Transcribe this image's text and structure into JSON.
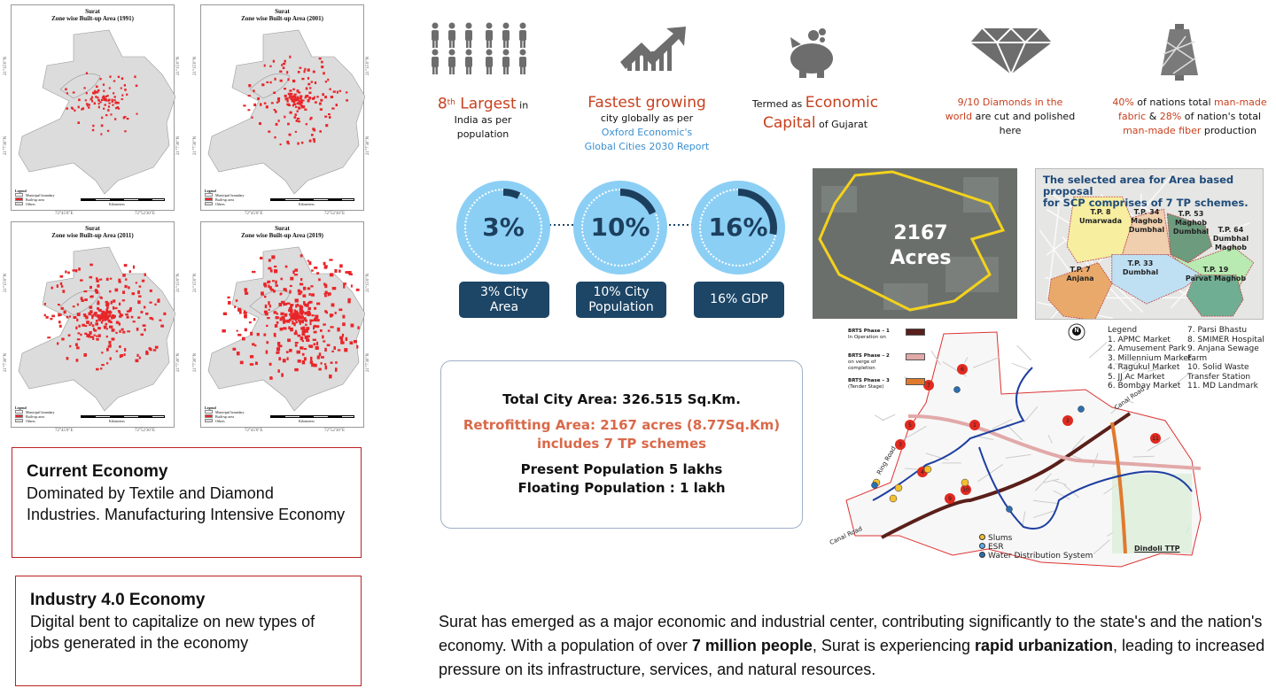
{
  "maps": [
    {
      "city": "Surat",
      "title": "Zone wise Built-up Area (1991)",
      "density": 0.25
    },
    {
      "city": "Surat",
      "title": "Zone wise Built-up Area (2001)",
      "density": 0.45
    },
    {
      "city": "Surat",
      "title": "Zone wise Built-up Area (2011)",
      "density": 0.65
    },
    {
      "city": "Surat",
      "title": "Zone wise Built-up Area (2019)",
      "density": 0.85
    }
  ],
  "map_legend": {
    "title": "Legend",
    "items": [
      "Municipal boundary",
      "Built-up area",
      "Others"
    ],
    "scale_unit": "Kilometers",
    "scale_ticks": [
      "4",
      "2",
      "0",
      "4",
      "8",
      "12"
    ],
    "coords_top": [
      "72°45'0\"E",
      "72°52'30\"E"
    ],
    "coords_side": [
      "21°15'0\"N",
      "21°7'30\"N"
    ],
    "builtup_color": "#e8262a"
  },
  "economy_boxes": [
    {
      "title": "Current Economy",
      "text": "Dominated by Textile and Diamond Industries. Manufacturing Intensive Economy"
    },
    {
      "title": "Industry 4.0 Economy",
      "text": "Digital bent to capitalize on new types of jobs generated in the economy"
    }
  ],
  "stats": [
    {
      "icon": "people-icon",
      "sup": "th",
      "hl1": "8",
      "hl2": " Largest",
      "t1": " in",
      "t2": "India as per",
      "t3": "population"
    },
    {
      "icon": "growth-chart-icon",
      "hl1": "Fastest growing",
      "t1": "city globally as per",
      "link1": "Oxford Economic's",
      "link2": "Global Cities 2030 Report"
    },
    {
      "icon": "piggy-bank-icon",
      "t1": "Termed as ",
      "hl1": "Economic",
      "hl2": "Capital",
      "t2": " of Gujarat"
    },
    {
      "icon": "diamond-icon",
      "hl1": "9/10 Diamonds in the",
      "hl2": "world",
      "t1": " are cut and polished",
      "t2": "here"
    },
    {
      "icon": "yarn-cone-icon",
      "hl1": "40%",
      "t1": " of nations total ",
      "hl2": "man-made",
      "hl3": "fabric",
      "t2": " & ",
      "hl4": "28%",
      "t3": " of nation's total",
      "hl5": "man-made fiber",
      "t4": " production"
    }
  ],
  "share_circles": [
    {
      "value": "3%",
      "fraction": 0.03,
      "label1": "3% City",
      "label2": "Area"
    },
    {
      "value": "10%",
      "fraction": 0.1,
      "label1": "10% City",
      "label2": "Population"
    },
    {
      "value": "16%",
      "fraction": 0.16,
      "label1": "16% GDP",
      "label2": ""
    }
  ],
  "info": {
    "total": "Total City Area: 326.515 Sq.Km.",
    "retro1": "Retrofitting Area: 2167 acres (8.77Sq.Km)",
    "retro2": "includes 7 TP schemes",
    "pop": "Present Population 5 lakhs",
    "floating": "Floating Population : 1 lakh"
  },
  "satellite": {
    "label1": "2167",
    "label2": "Acres"
  },
  "tp_map": {
    "title1": "The selected area for Area based proposal",
    "title2": "for SCP comprises of 7 TP schemes.",
    "zones": [
      {
        "l1": "T.P. 8",
        "l2": "Umarwada",
        "color": "#f7eea0"
      },
      {
        "l1": "T.P. 34",
        "l2": "Maghob",
        "l3": "Dumbhal",
        "color": "#f0cfae"
      },
      {
        "l1": "T.P. 53",
        "l2": "Maghob",
        "l3": "Dumbhal",
        "color": "#6d9b7e"
      },
      {
        "l1": "T.P. 64",
        "l2": "Dumbhal",
        "l3": "Maghob",
        "color": "#b8eab2"
      },
      {
        "l1": "T.P. 7",
        "l2": "Anjana",
        "color": "#e9a96a"
      },
      {
        "l1": "T.P. 33",
        "l2": "Dumbhal",
        "color": "#bfe0f3"
      },
      {
        "l1": "T.P. 19",
        "l2": "Parvat Maghob",
        "color": "#6fae92"
      }
    ]
  },
  "brts": {
    "phases": [
      {
        "l1": "BRTS Phase – 1",
        "l2": "In Operation on",
        "color": "#5a1f1a"
      },
      {
        "l1": "BRTS Phase – 2",
        "l2": "on verge of completion",
        "color": "#e2a9a9"
      },
      {
        "l1": "BRTS Phase – 3",
        "l2": "(Tender Stage)",
        "color": "#e07a2e"
      }
    ],
    "legend_title": "Legend",
    "legend": [
      "1.  APMC Market",
      "2.  Amusement Park",
      "3.  Millennium Market",
      "4.  Ragukul Market",
      "5.  JJ Ac Market",
      "6.  Bombay Market",
      "7.   Parsi Bhastu",
      "8.   SMIMER Hospital",
      "9.   Anjana Sewage Farm",
      "10. Solid  Waste Transfer  Station",
      "11. MD Landmark"
    ],
    "points": [
      {
        "label": "Slums",
        "color": "#f3c030"
      },
      {
        "label": "ESR",
        "color": "#5aaee8"
      },
      {
        "label": "Water Distribution System",
        "color": "#2c6fb0"
      }
    ],
    "roads": [
      "Ring Road",
      "Canal Road",
      "Canal Road"
    ],
    "dindoli": "Dindoli TTP",
    "north": "N"
  },
  "paragraph": {
    "p1": "Surat has emerged as a major economic and industrial center, contributing significantly to the state's and the nation's economy. With a population of over ",
    "b1": "7 million people",
    "p2": ", Surat is experiencing ",
    "b2": "rapid urbanization",
    "p3": ", leading to increased pressure on its infrastructure, services, and natural resources."
  },
  "colors": {
    "accent_red": "#c8401e",
    "navy": "#1c4566",
    "circle": "#8ccff5",
    "box_border": "#b22222"
  }
}
